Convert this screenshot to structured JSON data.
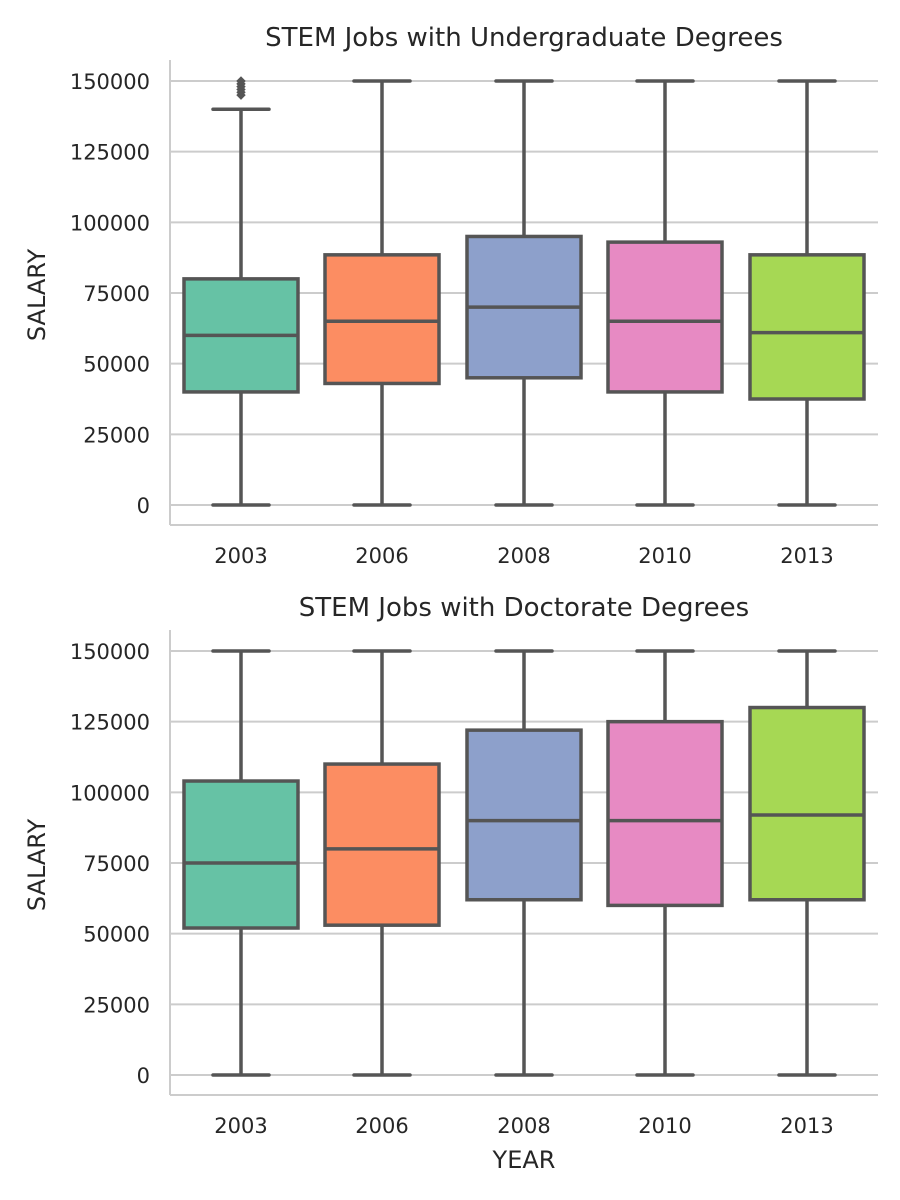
{
  "chart_data": [
    {
      "type": "box",
      "title": "STEM Jobs with Undergraduate Degrees",
      "xlabel": "",
      "ylabel": "SALARY",
      "categories": [
        "2003",
        "2006",
        "2008",
        "2010",
        "2013"
      ],
      "yticks": [
        "0",
        "25000",
        "50000",
        "75000",
        "100000",
        "125000",
        "150000"
      ],
      "ylim": [
        -7000,
        158000
      ],
      "grid": "y-axis gridlines on",
      "boxes": [
        {
          "category": "2003",
          "whisker_low": 0,
          "q1": 40000,
          "median": 60000,
          "q3": 80000,
          "whisker_high": 140000,
          "outliers": [
            145000,
            146000,
            147000,
            148000,
            149000,
            150000
          ],
          "color": "#66c2a5"
        },
        {
          "category": "2006",
          "whisker_low": 0,
          "q1": 43000,
          "median": 65000,
          "q3": 88500,
          "whisker_high": 150000,
          "outliers": [],
          "color": "#fc8d62"
        },
        {
          "category": "2008",
          "whisker_low": 0,
          "q1": 45000,
          "median": 70000,
          "q3": 95000,
          "whisker_high": 150000,
          "outliers": [],
          "color": "#8da0cb"
        },
        {
          "category": "2010",
          "whisker_low": 0,
          "q1": 40000,
          "median": 65000,
          "q3": 93000,
          "whisker_high": 150000,
          "outliers": [],
          "color": "#e78ac3"
        },
        {
          "category": "2013",
          "whisker_low": 0,
          "q1": 37500,
          "median": 61000,
          "q3": 88500,
          "whisker_high": 150000,
          "outliers": [],
          "color": "#a6d854"
        }
      ]
    },
    {
      "type": "box",
      "title": "STEM Jobs with Doctorate Degrees",
      "xlabel": "YEAR",
      "ylabel": "SALARY",
      "categories": [
        "2003",
        "2006",
        "2008",
        "2010",
        "2013"
      ],
      "yticks": [
        "0",
        "25000",
        "50000",
        "75000",
        "100000",
        "125000",
        "150000"
      ],
      "ylim": [
        -7000,
        158000
      ],
      "grid": "y-axis gridlines on",
      "boxes": [
        {
          "category": "2003",
          "whisker_low": 0,
          "q1": 52000,
          "median": 75000,
          "q3": 104000,
          "whisker_high": 150000,
          "outliers": [],
          "color": "#66c2a5"
        },
        {
          "category": "2006",
          "whisker_low": 0,
          "q1": 53000,
          "median": 80000,
          "q3": 110000,
          "whisker_high": 150000,
          "outliers": [],
          "color": "#fc8d62"
        },
        {
          "category": "2008",
          "whisker_low": 0,
          "q1": 62000,
          "median": 90000,
          "q3": 122000,
          "whisker_high": 150000,
          "outliers": [],
          "color": "#8da0cb"
        },
        {
          "category": "2010",
          "whisker_low": 0,
          "q1": 60000,
          "median": 90000,
          "q3": 125000,
          "whisker_high": 150000,
          "outliers": [],
          "color": "#e78ac3"
        },
        {
          "category": "2013",
          "whisker_low": 0,
          "q1": 62000,
          "median": 92000,
          "q3": 130000,
          "whisker_high": 150000,
          "outliers": [],
          "color": "#a6d854"
        }
      ]
    }
  ],
  "colors": {
    "box_edge": "#555555",
    "grid": "#cccccc",
    "spine": "#cccccc",
    "text": "#262626"
  }
}
